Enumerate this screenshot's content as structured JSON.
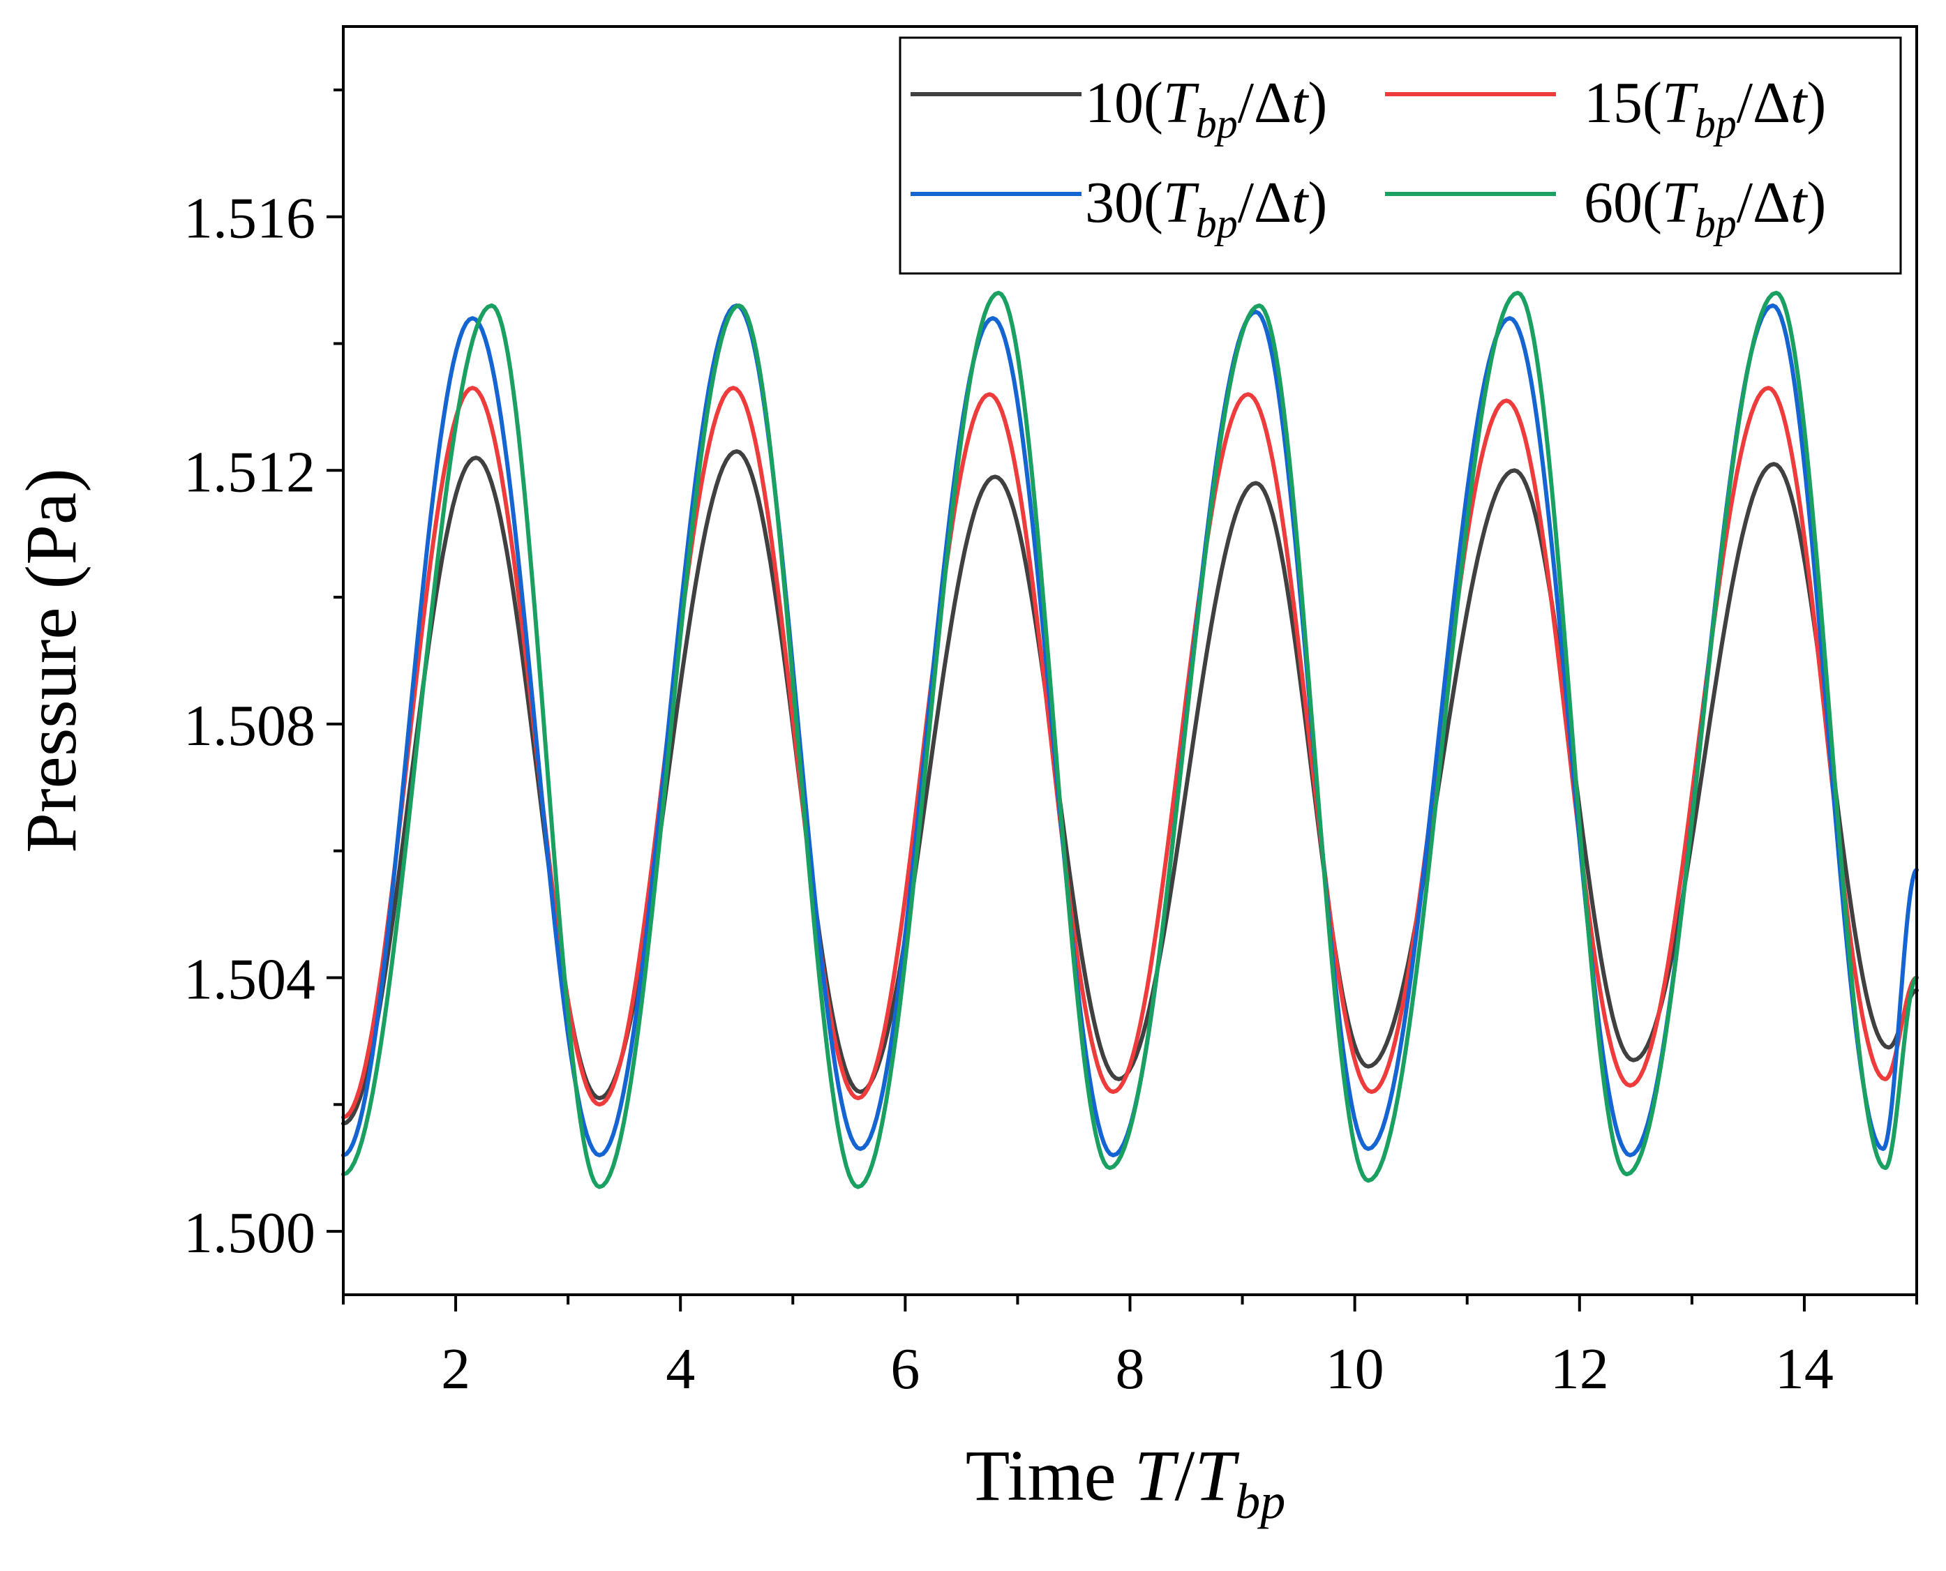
{
  "chart_data": {
    "type": "line",
    "xlabel": {
      "prefix": "Time ",
      "var": "T",
      "slash": "/",
      "var2": "T",
      "sub": "bp"
    },
    "ylabel": "Pressure (Pa)",
    "xlim": [
      1,
      15
    ],
    "ylim": [
      1.499,
      1.519
    ],
    "xticks": [
      2,
      4,
      6,
      8,
      10,
      12,
      14
    ],
    "xtick_labels": [
      "2",
      "4",
      "6",
      "8",
      "10",
      "12",
      "14"
    ],
    "yticks": [
      1.5,
      1.504,
      1.508,
      1.512,
      1.516
    ],
    "ytick_labels": [
      "1.500",
      "1.504",
      "1.508",
      "1.512",
      "1.516"
    ],
    "legend": {
      "location": "top-right",
      "columns": 2
    },
    "series": [
      {
        "name": "10(Tbp/Δt)",
        "label": {
          "num": "10",
          "open": "(",
          "T": "T",
          "sub": "bp",
          "slash": "/",
          "delta": "Δ",
          "t": "t",
          "close": ")"
        },
        "color": "#404040",
        "base": 1.5072,
        "period": 2.31,
        "phase": 1.62,
        "peaks": [
          [
            2.18,
            1.5122
          ],
          [
            4.5,
            1.5123
          ],
          [
            6.8,
            1.5119
          ],
          [
            9.12,
            1.5118
          ],
          [
            11.42,
            1.512
          ],
          [
            13.73,
            1.5121
          ]
        ],
        "troughs": [
          [
            1.0,
            1.5017
          ],
          [
            3.28,
            1.5021
          ],
          [
            5.6,
            1.5022
          ],
          [
            7.9,
            1.5024
          ],
          [
            10.12,
            1.5026
          ],
          [
            12.48,
            1.5027
          ],
          [
            14.75,
            1.5029
          ]
        ],
        "end_value": 1.5038
      },
      {
        "name": "15(Tbp/Δt)",
        "label": {
          "num": "15",
          "open": "(",
          "T": "T",
          "sub": "bp",
          "slash": "/",
          "delta": "Δ",
          "t": "t",
          "close": ")"
        },
        "color": "#ee3b3b",
        "base": 1.5077,
        "period": 2.31,
        "phase": 1.62,
        "peaks": [
          [
            2.15,
            1.5133
          ],
          [
            4.47,
            1.5133
          ],
          [
            6.75,
            1.5132
          ],
          [
            9.05,
            1.5132
          ],
          [
            11.35,
            1.5131
          ],
          [
            13.68,
            1.5133
          ]
        ],
        "troughs": [
          [
            1.0,
            1.5018
          ],
          [
            3.28,
            1.502
          ],
          [
            5.58,
            1.5021
          ],
          [
            7.85,
            1.5022
          ],
          [
            10.15,
            1.5022
          ],
          [
            12.45,
            1.5023
          ],
          [
            14.72,
            1.5024
          ]
        ],
        "end_value": 1.504
      },
      {
        "name": "30(Tbp/Δt)",
        "label": {
          "num": "30",
          "open": "(",
          "T": "T",
          "sub": "bp",
          "slash": "/",
          "delta": "Δ",
          "t": "t",
          "close": ")"
        },
        "color": "#1464d2",
        "base": 1.508,
        "period": 2.31,
        "phase": 1.65,
        "peaks": [
          [
            2.15,
            1.5144
          ],
          [
            4.5,
            1.5146
          ],
          [
            6.78,
            1.5144
          ],
          [
            9.12,
            1.5145
          ],
          [
            11.38,
            1.5144
          ],
          [
            13.72,
            1.5146
          ]
        ],
        "troughs": [
          [
            1.0,
            1.5012
          ],
          [
            3.28,
            1.5012
          ],
          [
            5.6,
            1.5013
          ],
          [
            7.85,
            1.5012
          ],
          [
            10.12,
            1.5013
          ],
          [
            12.45,
            1.5012
          ],
          [
            14.7,
            1.5013
          ]
        ],
        "end_value": 1.5057
      },
      {
        "name": "60(Tbp/Δt)",
        "label": {
          "num": "60",
          "open": "(",
          "T": "T",
          "sub": "bp",
          "slash": "/",
          "delta": "Δ",
          "t": "t",
          "close": ")"
        },
        "color": "#1aa060",
        "base": 1.5078,
        "period": 2.31,
        "phase": 1.68,
        "peaks": [
          [
            2.32,
            1.5146
          ],
          [
            4.52,
            1.5146
          ],
          [
            6.83,
            1.5148
          ],
          [
            9.15,
            1.5146
          ],
          [
            11.45,
            1.5148
          ],
          [
            13.75,
            1.5148
          ]
        ],
        "troughs": [
          [
            1.0,
            1.5009
          ],
          [
            3.28,
            1.5007
          ],
          [
            5.58,
            1.5007
          ],
          [
            7.82,
            1.501
          ],
          [
            10.12,
            1.5008
          ],
          [
            12.42,
            1.5009
          ],
          [
            14.72,
            1.501
          ]
        ],
        "end_value": 1.504
      }
    ]
  }
}
